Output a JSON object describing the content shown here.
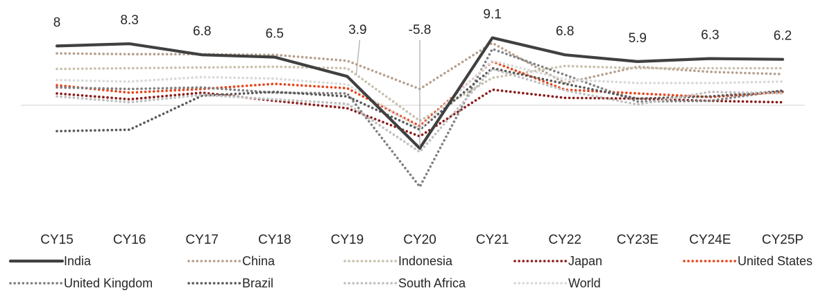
{
  "chart_data": {
    "type": "line",
    "categories": [
      "CY15",
      "CY16",
      "CY17",
      "CY18",
      "CY19",
      "CY20",
      "CY21",
      "CY22",
      "CY23E",
      "CY24E",
      "CY25P"
    ],
    "ylim": [
      -9,
      12
    ],
    "grid": false,
    "zero_line": true,
    "legend_position": "bottom",
    "data_labels": {
      "series": "India",
      "texts": [
        "8",
        "8.3",
        "6.8",
        "6.5",
        "3.9",
        "-5.8",
        "9.1",
        "6.8",
        "5.9",
        "6.3",
        "6.2"
      ]
    },
    "series": [
      {
        "name": "India",
        "style": "solid",
        "color": "#404040",
        "values": [
          8.0,
          8.3,
          6.8,
          6.5,
          3.9,
          -5.8,
          9.1,
          6.8,
          5.9,
          6.3,
          6.2
        ]
      },
      {
        "name": "China",
        "style": "dotted",
        "color": "#b5a08e",
        "values": [
          7.0,
          6.9,
          6.9,
          6.8,
          6.0,
          2.2,
          8.4,
          3.0,
          5.2,
          4.5,
          4.2
        ]
      },
      {
        "name": "Indonesia",
        "style": "dotted",
        "color": "#c9c0ad",
        "values": [
          4.9,
          5.0,
          5.1,
          5.2,
          5.0,
          -2.1,
          3.7,
          5.3,
          5.0,
          5.0,
          5.0
        ]
      },
      {
        "name": "Japan",
        "style": "dotted",
        "color": "#8b1a1a",
        "values": [
          1.6,
          0.8,
          1.7,
          0.6,
          -0.4,
          -4.2,
          2.1,
          1.0,
          0.9,
          0.6,
          0.4
        ]
      },
      {
        "name": "United States",
        "style": "dotted",
        "color": "#e8431a",
        "values": [
          2.7,
          1.7,
          2.2,
          2.9,
          2.3,
          -2.8,
          5.9,
          2.1,
          1.6,
          1.1,
          1.8
        ]
      },
      {
        "name": "United Kingdom",
        "style": "dotted",
        "color": "#7f7f7f",
        "values": [
          2.4,
          2.2,
          2.4,
          1.7,
          1.6,
          -11.0,
          7.6,
          4.1,
          0.5,
          0.6,
          2.0
        ]
      },
      {
        "name": "Brazil",
        "style": "dotted",
        "color": "#595959",
        "values": [
          -3.5,
          -3.3,
          1.3,
          1.8,
          1.2,
          -3.3,
          5.0,
          2.9,
          0.9,
          1.2,
          1.9
        ]
      },
      {
        "name": "South Africa",
        "style": "dotted",
        "color": "#bfbfbf",
        "values": [
          1.2,
          0.4,
          1.4,
          0.8,
          0.2,
          -6.3,
          4.9,
          2.0,
          0.1,
          1.8,
          1.6
        ]
      },
      {
        "name": "World",
        "style": "dotted",
        "color": "#d9d9d9",
        "values": [
          3.4,
          3.2,
          3.8,
          3.6,
          2.8,
          -3.1,
          6.0,
          3.5,
          3.0,
          3.0,
          3.2
        ]
      }
    ]
  }
}
